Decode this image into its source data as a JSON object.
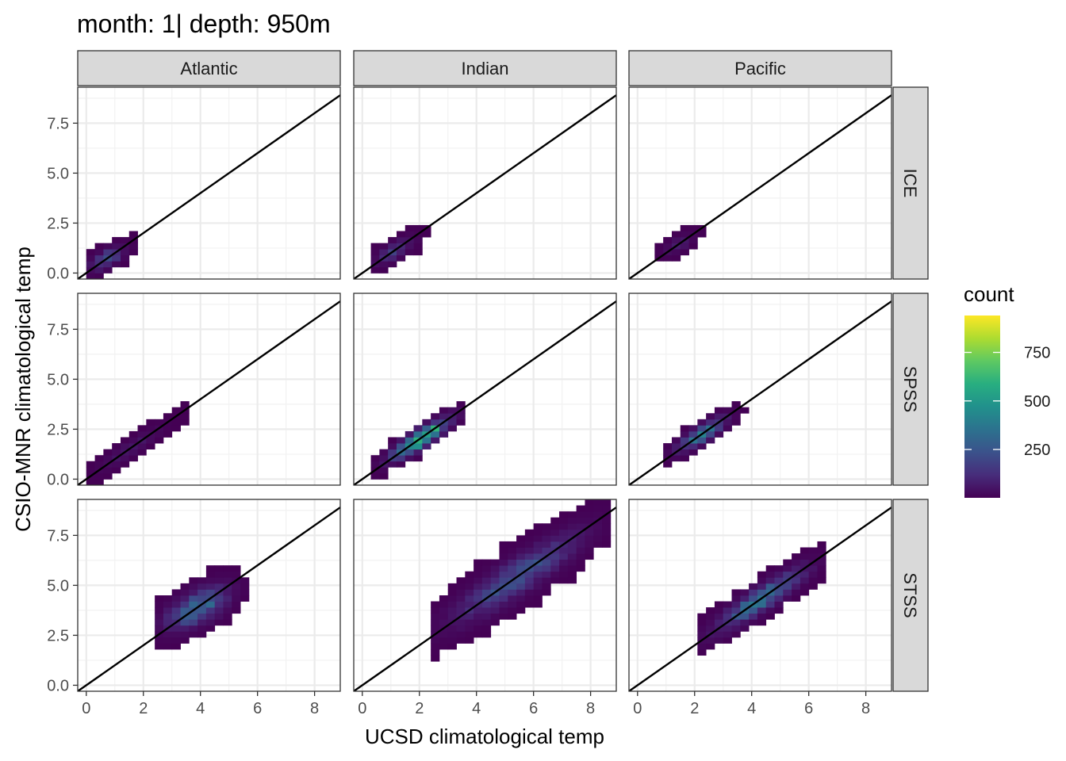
{
  "title": "month: 1| depth: 950m",
  "chart_data": {
    "type": "heatmap",
    "subtype": "2d-bin-count facet grid with y = x reference line",
    "title": "month: 1| depth: 950m",
    "xlabel": "UCSD climatological temp",
    "ylabel": "CSIO-MNR climatological temp",
    "xlim": [
      -0.3,
      8.9
    ],
    "ylim": [
      -0.3,
      9.3
    ],
    "x_ticks": [
      0,
      2,
      4,
      6,
      8
    ],
    "x_tick_labels": [
      "0",
      "2",
      "4",
      "6",
      "8"
    ],
    "y_ticks": [
      0,
      2.5,
      5,
      7.5
    ],
    "y_tick_labels": [
      "0.0",
      "2.5",
      "5.0",
      "7.5"
    ],
    "grid": true,
    "bin_width": 0.3,
    "reference_line": {
      "type": "identity",
      "slope": 1,
      "intercept": 0
    },
    "facet_cols": [
      "Atlantic",
      "Indian",
      "Pacific"
    ],
    "facet_rows": [
      "ICE",
      "SPSS",
      "STSS"
    ],
    "legend": {
      "title": "count",
      "position": "right",
      "colormap": "viridis",
      "min": 1,
      "max": 940,
      "ticks": [
        250,
        500,
        750
      ],
      "tick_labels": [
        "250",
        "500",
        "750"
      ]
    },
    "panels": [
      {
        "col": "Atlantic",
        "row": "ICE",
        "x_range": [
          0,
          1.7
        ],
        "center": [
          0.7,
          0.8
        ],
        "spread_along": 0.8,
        "spread_across": 0.35,
        "peak_count": 300
      },
      {
        "col": "Indian",
        "row": "ICE",
        "x_range": [
          0.4,
          2.3
        ],
        "center": [
          1.2,
          1.0
        ],
        "spread_along": 0.9,
        "spread_across": 0.35,
        "peak_count": 200
      },
      {
        "col": "Pacific",
        "row": "ICE",
        "x_range": [
          0.8,
          2.1
        ],
        "center": [
          1.5,
          1.4
        ],
        "spread_along": 0.7,
        "spread_across": 0.3,
        "peak_count": 100
      },
      {
        "col": "Atlantic",
        "row": "SPSS",
        "x_range": [
          0,
          3.5
        ],
        "center": [
          1.6,
          1.5
        ],
        "spread_along": 1.6,
        "spread_across": 0.3,
        "peak_count": 80
      },
      {
        "col": "Indian",
        "row": "SPSS",
        "x_range": [
          0.3,
          3.5
        ],
        "center": [
          2.0,
          2.1
        ],
        "spread_along": 1.4,
        "spread_across": 0.35,
        "peak_count": 940
      },
      {
        "col": "Pacific",
        "row": "SPSS",
        "x_range": [
          1.0,
          3.7
        ],
        "center": [
          2.3,
          2.2
        ],
        "spread_along": 1.2,
        "spread_across": 0.35,
        "peak_count": 450
      },
      {
        "col": "Atlantic",
        "row": "STSS",
        "x_range": [
          2.5,
          5.5
        ],
        "center": [
          3.9,
          3.9
        ],
        "spread_along": 1.4,
        "spread_across": 0.7,
        "peak_count": 450
      },
      {
        "col": "Indian",
        "row": "STSS",
        "x_range": [
          2.4,
          8.5
        ],
        "center": [
          5.4,
          5.4
        ],
        "spread_along": 3.2,
        "spread_across": 0.75,
        "peak_count": 300
      },
      {
        "col": "Pacific",
        "row": "STSS",
        "x_range": [
          2.2,
          6.5
        ],
        "center": [
          4.3,
          4.3
        ],
        "spread_along": 2.2,
        "spread_across": 0.5,
        "peak_count": 450
      }
    ]
  }
}
